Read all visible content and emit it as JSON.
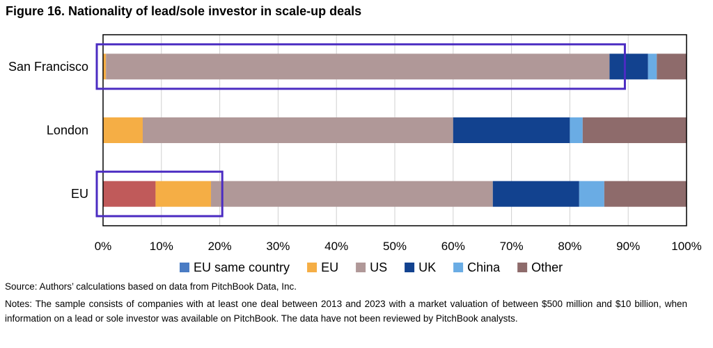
{
  "figure": {
    "title": "Figure 16. Nationality of lead/sole investor in scale-up deals",
    "source": "Source: Authors’ calculations based on data from PitchBook Data, Inc.",
    "notes": "Notes: The sample consists of companies with at least one deal between 2013 and 2023 with a market valuation of between $500 million and $10 billion, when information on a lead or sole investor was available on PitchBook. The data have not been reviewed by PitchBook analysts."
  },
  "chart_data": {
    "type": "bar",
    "orientation": "horizontal",
    "stacked": true,
    "categories": [
      "San Francisco",
      "London",
      "EU"
    ],
    "series": [
      {
        "name": "EU same country",
        "color": "#4a7cc4",
        "values": [
          0.0,
          0.0,
          9.0
        ]
      },
      {
        "name": "EU",
        "color": "#f5ae45",
        "values": [
          0.5,
          6.8,
          9.5
        ]
      },
      {
        "name": "US",
        "color": "#b09898",
        "values": [
          86.3,
          53.2,
          48.3
        ]
      },
      {
        "name": "UK",
        "color": "#12428f",
        "values": [
          6.6,
          20.0,
          14.8
        ]
      },
      {
        "name": "China",
        "color": "#6aace4",
        "values": [
          1.5,
          2.2,
          4.3
        ]
      },
      {
        "name": "Other",
        "color": "#8e6b6b",
        "values": [
          5.1,
          17.8,
          14.1
        ]
      }
    ],
    "first_segment_override": {
      "EU": "#c05a5a"
    },
    "xlim": [
      0,
      100
    ],
    "xticks": [
      "0%",
      "10%",
      "20%",
      "30%",
      "40%",
      "50%",
      "60%",
      "70%",
      "80%",
      "90%",
      "100%"
    ],
    "grid": true,
    "legend_position": "bottom",
    "highlights": [
      {
        "category": "San Francisco",
        "from": 0,
        "to": 88
      },
      {
        "category": "EU",
        "from": 0,
        "to": 19
      }
    ],
    "highlight_color": "#4b2cc2"
  }
}
